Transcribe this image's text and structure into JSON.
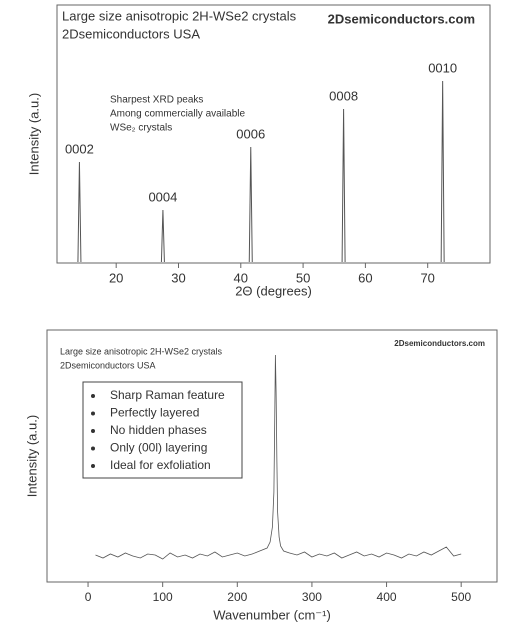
{
  "chart_data": [
    {
      "type": "stem",
      "title_lines": [
        "Large size anisotropic 2H-WSe2 crystals",
        "2Dsemiconductors USA"
      ],
      "brand": "2Dsemiconductors.com",
      "annotation_lines": [
        "Sharpest XRD peaks",
        "Among commercially available",
        "WSe₂ crystals"
      ],
      "x_label": "2Θ (degrees)",
      "y_label": "Intensity (a.u.)",
      "peak_labels": [
        "0002",
        "0004",
        "0006",
        "0008",
        "0010"
      ],
      "x": [
        14.1,
        27.5,
        41.6,
        56.5,
        72.4
      ],
      "values": [
        101,
        53,
        116,
        154,
        182
      ],
      "color": "#555555",
      "xlim": [
        10.5,
        80
      ],
      "xticks": [
        20,
        30,
        40,
        50,
        60,
        70
      ],
      "ylim": [
        0,
        258
      ]
    },
    {
      "type": "line",
      "title_lines": [
        "Large size anisotropic 2H-WSe2 crystals",
        "2Dsemiconductors USA"
      ],
      "brand": "2Dsemiconductors.com",
      "legend_items": [
        "Sharp Raman feature",
        "Perfectly  layered",
        "No hidden phases",
        "Only (00l) layering",
        "Ideal for exfoliation"
      ],
      "x_label": "Wavenumber (cm⁻¹)",
      "y_label": "Intensity (a.u.)",
      "x": [
        10,
        20,
        30,
        40,
        50,
        60,
        70,
        80,
        90,
        100,
        110,
        120,
        130,
        140,
        150,
        160,
        170,
        180,
        190,
        200,
        210,
        220,
        230,
        240,
        244,
        247,
        249,
        250,
        251,
        252,
        253,
        254,
        256,
        258,
        262,
        270,
        280,
        290,
        300,
        310,
        320,
        330,
        340,
        350,
        360,
        370,
        380,
        390,
        400,
        410,
        420,
        430,
        440,
        450,
        460,
        470,
        480,
        490,
        500
      ],
      "values": [
        27,
        24,
        28,
        25,
        29,
        26,
        24,
        28,
        27,
        23,
        29,
        25,
        27,
        24,
        28,
        26,
        30,
        25,
        27,
        29,
        26,
        28,
        31,
        34,
        40,
        55,
        90,
        150,
        227,
        190,
        120,
        70,
        45,
        36,
        31,
        29,
        27,
        30,
        25,
        28,
        26,
        29,
        24,
        27,
        30,
        26,
        28,
        25,
        29,
        27,
        24,
        28,
        26,
        30,
        27,
        31,
        35,
        26,
        28
      ],
      "color": "#555555",
      "xlim": [
        -55,
        548
      ],
      "xticks": [
        0,
        100,
        200,
        300,
        400,
        500
      ],
      "ylim": [
        0,
        252
      ]
    }
  ]
}
